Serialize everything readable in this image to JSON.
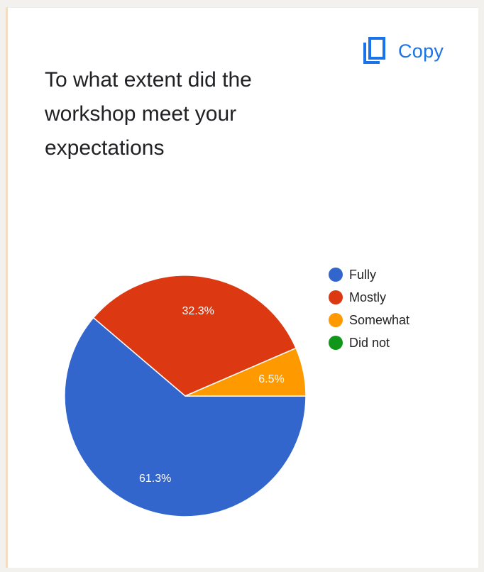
{
  "copy_button": {
    "label": "Copy",
    "icon": "copy-icon",
    "color": "#1a73e8"
  },
  "chart_data": {
    "type": "pie",
    "title": "To what extent did the workshop meet your expectations",
    "legend_position": "right",
    "categories": [
      "Fully",
      "Mostly",
      "Somewhat",
      "Did not"
    ],
    "values": [
      61.3,
      32.3,
      6.5,
      0
    ],
    "data_labels": [
      "61.3%",
      "32.3%",
      "6.5%",
      ""
    ],
    "colors": [
      "#3366cc",
      "#dc3912",
      "#ff9900",
      "#109618"
    ]
  }
}
